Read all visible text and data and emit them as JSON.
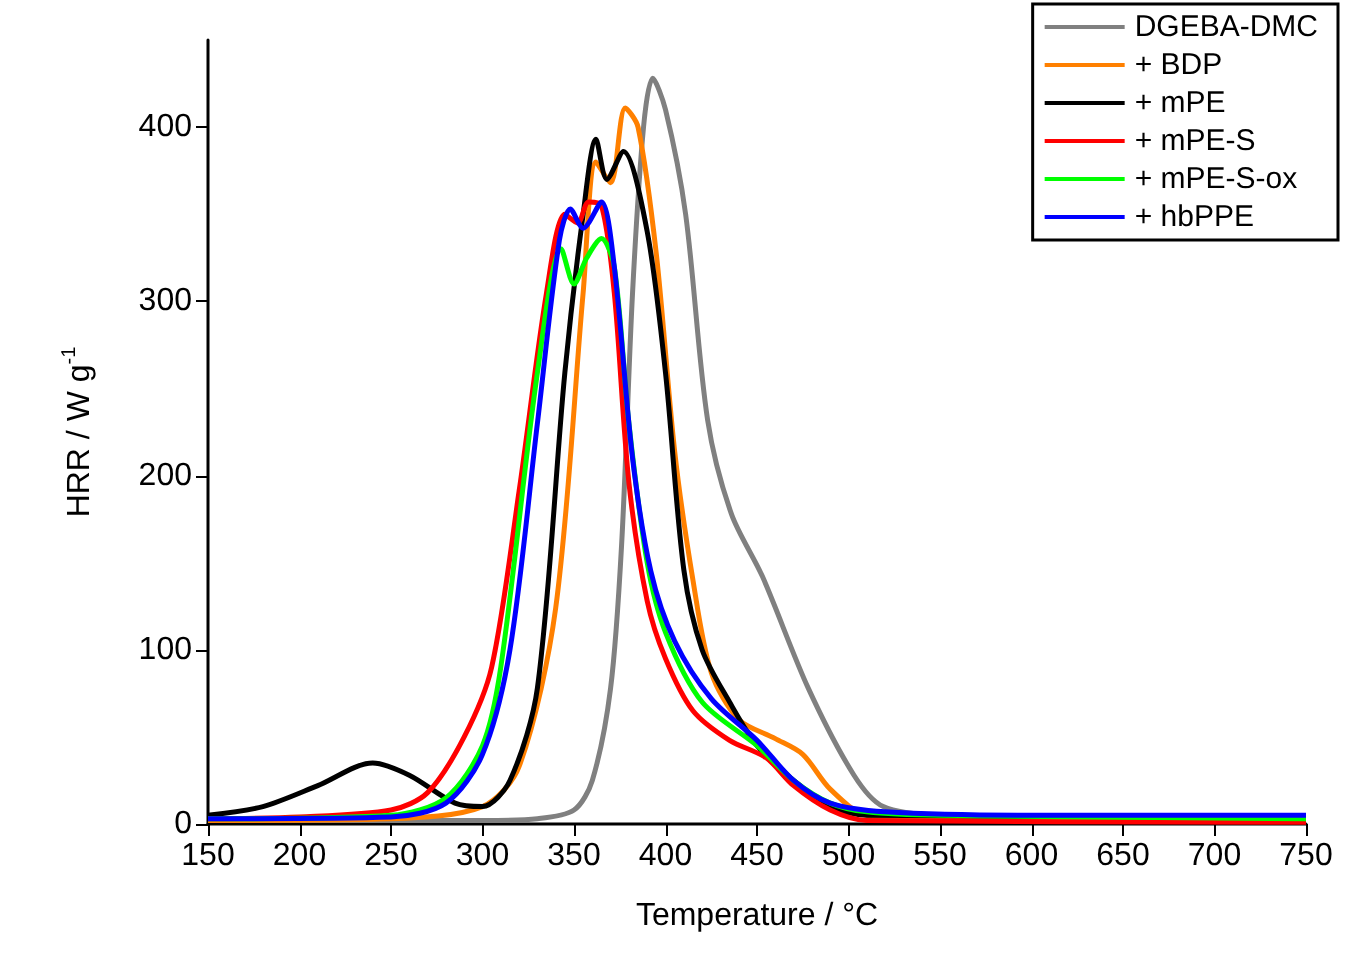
{
  "chart_data": {
    "type": "line",
    "xlabel": "Temperature / °C",
    "ylabel": "HRR / W g$^{-1}$",
    "xlim": [
      150,
      750
    ],
    "xticks": [
      150,
      200,
      250,
      300,
      350,
      400,
      450,
      500,
      550,
      600,
      650,
      700,
      750
    ],
    "ylim": [
      0,
      450
    ],
    "yticks": [
      0,
      100,
      200,
      300,
      400
    ],
    "grid": false,
    "legend": "top right",
    "marker": "none",
    "line_style": "solid",
    "series": [
      {
        "name": "DGEBA-DMC",
        "color": "#808080",
        "x": [
          150,
          250,
          300,
          330,
          350,
          360,
          370,
          376,
          382,
          388,
          393,
          400,
          411,
          423,
          436,
          453,
          478,
          503,
          519,
          550,
          650,
          750
        ],
        "values": [
          2,
          2,
          2,
          3,
          8,
          25,
          78,
          160,
          305,
          400,
          428,
          410,
          350,
          232,
          178,
          142,
          78,
          28,
          10,
          5,
          4,
          4
        ]
      },
      {
        "name": "+ BDP",
        "color": "#ff8000",
        "x": [
          150,
          250,
          300,
          320,
          340,
          355,
          362,
          370,
          378,
          385,
          395,
          405,
          415,
          425,
          440,
          460,
          475,
          490,
          510,
          550,
          750
        ],
        "values": [
          2,
          3,
          10,
          33,
          124,
          305,
          380,
          368,
          411,
          400,
          327,
          214,
          140,
          87,
          60,
          49,
          40,
          20,
          5,
          3,
          3
        ]
      },
      {
        "name": "+ mPE",
        "color": "#000000",
        "x": [
          150,
          180,
          210,
          240,
          260,
          285,
          300,
          315,
          330,
          345,
          355,
          362,
          368,
          377,
          390,
          400,
          410,
          420,
          435,
          450,
          470,
          490,
          510,
          750
        ],
        "values": [
          5,
          10,
          22,
          35,
          28,
          12,
          10,
          25,
          78,
          259,
          350,
          393,
          370,
          386,
          340,
          259,
          146,
          100,
          70,
          45,
          25,
          10,
          5,
          4
        ]
      },
      {
        "name": "+ mPE-S",
        "color": "#ff0000",
        "x": [
          150,
          200,
          250,
          270,
          290,
          305,
          320,
          335,
          345,
          352,
          358,
          365,
          372,
          380,
          390,
          400,
          415,
          435,
          455,
          470,
          490,
          510,
          750
        ],
        "values": [
          3,
          4,
          8,
          18,
          50,
          90,
          191,
          305,
          350,
          345,
          357,
          355,
          305,
          196,
          128,
          95,
          65,
          48,
          38,
          22,
          8,
          2,
          1
        ]
      },
      {
        "name": "+ mPE-S-ox",
        "color": "#00ff00",
        "x": [
          150,
          250,
          280,
          300,
          310,
          330,
          343,
          350,
          357,
          365,
          372,
          380,
          390,
          400,
          420,
          450,
          470,
          490,
          510,
          550,
          750
        ],
        "values": [
          3,
          5,
          15,
          45,
          90,
          259,
          330,
          310,
          325,
          336,
          320,
          230,
          150,
          110,
          70,
          45,
          25,
          12,
          7,
          5,
          3
        ]
      },
      {
        "name": "+ hbPPE",
        "color": "#0000ff",
        "x": [
          150,
          250,
          280,
          300,
          315,
          330,
          342,
          348,
          355,
          365,
          372,
          382,
          392,
          405,
          425,
          450,
          470,
          490,
          520,
          600,
          750
        ],
        "values": [
          3,
          4,
          12,
          40,
          100,
          230,
          335,
          353,
          342,
          357,
          320,
          210,
          145,
          105,
          72,
          48,
          25,
          12,
          7,
          5,
          5
        ]
      }
    ]
  }
}
